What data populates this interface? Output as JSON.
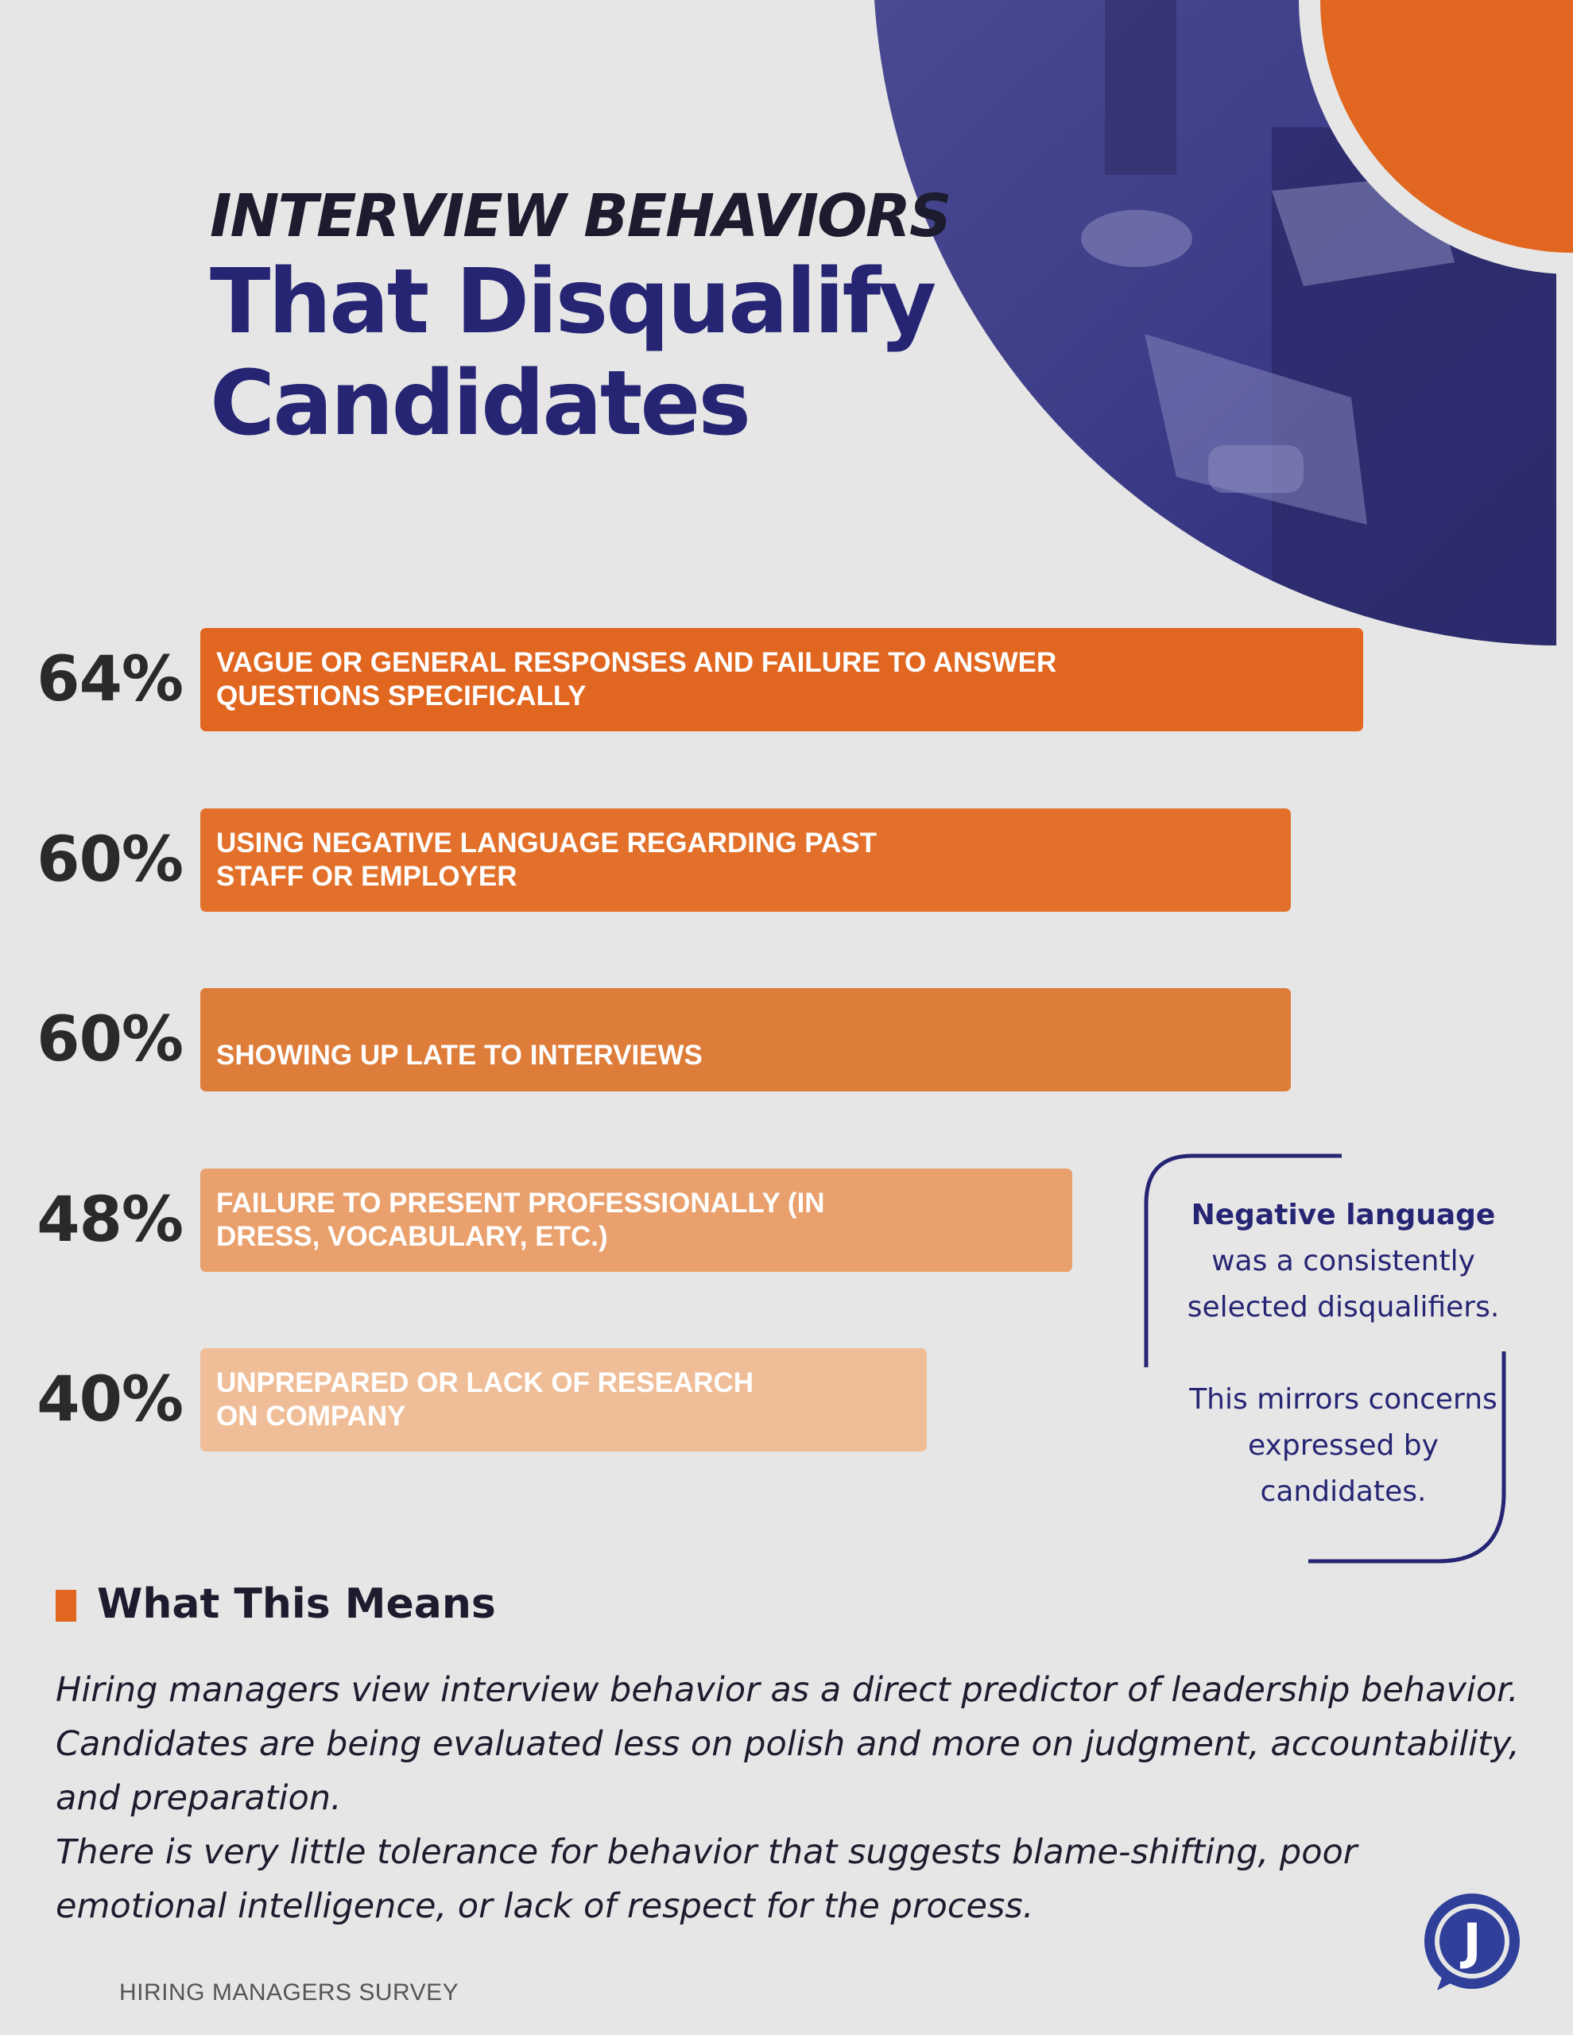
{
  "header": {
    "kicker": "INTERVIEW BEHAVIORS",
    "title_line1": "That Disqualify",
    "title_line2": "Candidates"
  },
  "colors": {
    "background": "#e6e6e6",
    "navy": "#262574",
    "orange": "#e1661f",
    "text_dark": "#1c1c2e"
  },
  "chart_data": {
    "type": "bar",
    "orientation": "horizontal",
    "categories": [
      "VAGUE OR GENERAL RESPONSES AND FAILURE TO ANSWER\nQUESTIONS SPECIFICALLY",
      "USING NEGATIVE LANGUAGE REGARDING PAST\nSTAFF OR EMPLOYER",
      "SHOWING UP LATE TO INTERVIEWS",
      "FAILURE TO PRESENT PROFESSIONALLY (IN\nDRESS, VOCABULARY, ETC.)",
      "UNPREPARED OR LACK OF RESEARCH\nON COMPANY"
    ],
    "values": [
      64,
      60,
      60,
      48,
      40
    ],
    "value_labels": [
      "64%",
      "60%",
      "60%",
      "48%",
      "40%"
    ],
    "bar_colors": [
      "#e1661f",
      "#e3702a",
      "#de7c3a",
      "#e9a06c",
      "#efbe98"
    ],
    "unit": "%",
    "xlim": [
      0,
      100
    ],
    "grid": false,
    "legend": "none"
  },
  "callout": {
    "strong": "Negative language",
    "line1": "was a consistently",
    "line2": "selected disqualifiers.",
    "para2_line1": "This mirrors concerns",
    "para2_line2": "expressed by",
    "para2_line3": "candidates."
  },
  "section": {
    "title": "What This Means",
    "paragraph1": "Hiring managers view interview behavior as a direct predictor of leadership behavior. Candidates are being evaluated less on polish and more on judgment, accountability, and preparation.",
    "paragraph2": "There is very little tolerance for behavior that suggests blame-shifting, poor emotional intelligence, or lack of respect for the process."
  },
  "footer": {
    "label": "HIRING MANAGERS SURVEY",
    "logo_letter": "J",
    "logo_icon": "speech-bubble-j-logo-icon"
  },
  "hero": {
    "photo_icon": "interview-photo-icon"
  }
}
